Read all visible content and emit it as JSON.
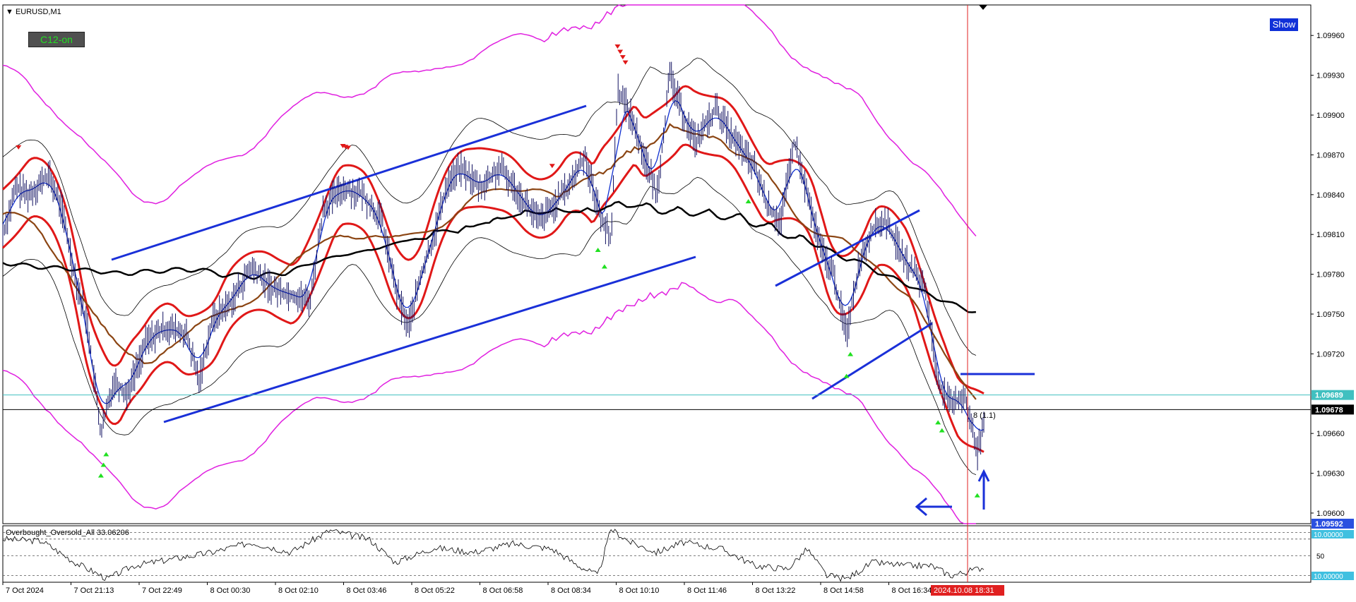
{
  "header": {
    "symbol_label": "EURUSD,M1",
    "c12_button": "C12-on",
    "show_button": "Show"
  },
  "colors": {
    "candles": "#101060",
    "red_band": "#e01818",
    "magenta_band": "#e020e0",
    "blue_line": "#1030d0",
    "brown_ma": "#8b4513",
    "black_ma": "#000000",
    "trendline": "#1a30d8",
    "buy_arrow": "#20e020",
    "sell_arrow": "#e01818",
    "current_price_label": "#000000",
    "cyan_line": "#40c0c0",
    "cursor_line": "#e02020"
  },
  "chart_data": {
    "type": "candlestick",
    "symbol": "EURUSD",
    "timeframe": "M1",
    "y_axis_ticks": [
      "1.09960",
      "1.09930",
      "1.09900",
      "1.09870",
      "1.09840",
      "1.09810",
      "1.09780",
      "1.09750",
      "1.09720",
      "1.09660",
      "1.09630",
      "1.09600"
    ],
    "ylim": [
      1.09592,
      1.09983
    ],
    "price_labels": [
      {
        "value": "1.09689",
        "price": 1.09689,
        "style": "cyan"
      },
      {
        "value": "1.09678",
        "price": 1.09678,
        "style": "current"
      },
      {
        "value": "1.09592",
        "price": 1.09592,
        "style": "blue"
      }
    ],
    "x_axis_ticks": [
      "7 Oct 2024",
      "7 Oct 21:13",
      "7 Oct 22:49",
      "8 Oct 00:30",
      "8 Oct 02:10",
      "8 Oct 03:46",
      "8 Oct 05:22",
      "8 Oct 06:58",
      "8 Oct 08:34",
      "8 Oct 10:10",
      "8 Oct 11:46",
      "8 Oct 13:22",
      "8 Oct 14:58",
      "8 Oct 16:34"
    ],
    "cursor_time_label": "2024.10.08 18:31",
    "cursor_annotation": "8 (1.1)",
    "price_path": [
      [
        0.0,
        1.0981
      ],
      [
        0.01,
        1.09845
      ],
      [
        0.02,
        1.0984
      ],
      [
        0.035,
        1.09855
      ],
      [
        0.045,
        1.0983
      ],
      [
        0.055,
        1.0978
      ],
      [
        0.065,
        1.0974
      ],
      [
        0.075,
        1.0966
      ],
      [
        0.085,
        1.097
      ],
      [
        0.095,
        1.0969
      ],
      [
        0.11,
        1.0973
      ],
      [
        0.125,
        1.0974
      ],
      [
        0.14,
        1.09735
      ],
      [
        0.15,
        1.097
      ],
      [
        0.16,
        1.09745
      ],
      [
        0.175,
        1.0976
      ],
      [
        0.19,
        1.09785
      ],
      [
        0.205,
        1.0977
      ],
      [
        0.22,
        1.09765
      ],
      [
        0.235,
        1.0976
      ],
      [
        0.245,
        1.0983
      ],
      [
        0.26,
        1.09845
      ],
      [
        0.275,
        1.0984
      ],
      [
        0.29,
        1.0982
      ],
      [
        0.3,
        1.0977
      ],
      [
        0.31,
        1.0974
      ],
      [
        0.32,
        1.0978
      ],
      [
        0.33,
        1.0981
      ],
      [
        0.34,
        1.0985
      ],
      [
        0.35,
        1.0986
      ],
      [
        0.365,
        1.09845
      ],
      [
        0.38,
        1.0986
      ],
      [
        0.395,
        1.0984
      ],
      [
        0.41,
        1.0982
      ],
      [
        0.42,
        1.0983
      ],
      [
        0.435,
        1.0985
      ],
      [
        0.445,
        1.0987
      ],
      [
        0.455,
        1.0983
      ],
      [
        0.465,
        1.09805
      ],
      [
        0.47,
        1.0992
      ],
      [
        0.48,
        1.099
      ],
      [
        0.49,
        1.0987
      ],
      [
        0.5,
        1.0984
      ],
      [
        0.51,
        1.0993
      ],
      [
        0.52,
        1.099
      ],
      [
        0.53,
        1.0988
      ],
      [
        0.545,
        1.09905
      ],
      [
        0.56,
        1.0988
      ],
      [
        0.575,
        1.0986
      ],
      [
        0.585,
        1.0983
      ],
      [
        0.595,
        1.0982
      ],
      [
        0.605,
        1.0988
      ],
      [
        0.615,
        1.0984
      ],
      [
        0.625,
        1.098
      ],
      [
        0.635,
        1.0978
      ],
      [
        0.645,
        1.09735
      ],
      [
        0.655,
        1.0979
      ],
      [
        0.665,
        1.09815
      ],
      [
        0.675,
        1.0982
      ],
      [
        0.69,
        1.0979
      ],
      [
        0.705,
        1.0977
      ],
      [
        0.715,
        1.097
      ],
      [
        0.725,
        1.0968
      ],
      [
        0.735,
        1.0969
      ],
      [
        0.745,
        1.09645
      ],
      [
        0.75,
        1.0967
      ]
    ],
    "oscillator": {
      "name": "Overbought_Oversold_All",
      "label": "Overbought_Oversold_All 33.06206",
      "value": 33.06206,
      "levels": [
        50,
        20
      ],
      "bound_labels": [
        "10.00000",
        "10.00000"
      ],
      "ylim": [
        10,
        95
      ],
      "path": [
        [
          0.0,
          75
        ],
        [
          0.03,
          72
        ],
        [
          0.055,
          40
        ],
        [
          0.08,
          15
        ],
        [
          0.1,
          35
        ],
        [
          0.13,
          45
        ],
        [
          0.16,
          55
        ],
        [
          0.19,
          70
        ],
        [
          0.22,
          55
        ],
        [
          0.25,
          88
        ],
        [
          0.28,
          75
        ],
        [
          0.3,
          40
        ],
        [
          0.33,
          62
        ],
        [
          0.36,
          55
        ],
        [
          0.39,
          68
        ],
        [
          0.42,
          60
        ],
        [
          0.44,
          35
        ],
        [
          0.455,
          20
        ],
        [
          0.465,
          90
        ],
        [
          0.48,
          70
        ],
        [
          0.5,
          55
        ],
        [
          0.52,
          70
        ],
        [
          0.55,
          60
        ],
        [
          0.575,
          35
        ],
        [
          0.6,
          30
        ],
        [
          0.615,
          60
        ],
        [
          0.63,
          20
        ],
        [
          0.645,
          15
        ],
        [
          0.665,
          40
        ],
        [
          0.69,
          35
        ],
        [
          0.71,
          35
        ],
        [
          0.725,
          20
        ],
        [
          0.745,
          30
        ],
        [
          0.75,
          33
        ]
      ]
    }
  }
}
